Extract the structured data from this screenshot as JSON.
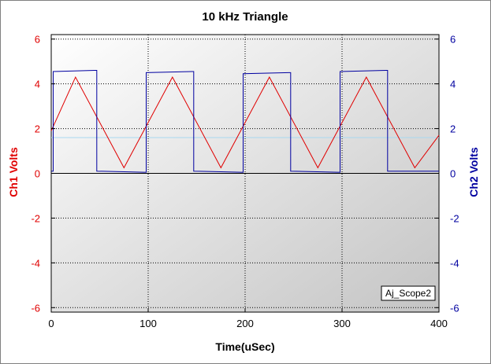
{
  "chart_data": {
    "type": "line",
    "title": "10 kHz Triangle",
    "xlabel": "Time(uSec)",
    "ylabel_left": "Ch1 Volts",
    "ylabel_right": "Ch2 Volts",
    "xlim": [
      0,
      400
    ],
    "ylim_left": [
      -6.2,
      6.2
    ],
    "ylim_right": [
      -6.2,
      6.2
    ],
    "x_ticks": [
      0,
      100,
      200,
      300,
      400
    ],
    "y_ticks": [
      -6,
      -4,
      -2,
      0,
      2,
      4,
      6
    ],
    "grid": true,
    "tag": "Aj_Scope2",
    "colors": {
      "ch1": "#e00000",
      "ch2": "#0000a0",
      "ref_line": "#a8d8f0",
      "left_axis_text": "#e00000",
      "right_axis_text": "#0000a0"
    },
    "reference_line_y": 1.6,
    "series": [
      {
        "name": "Ch1 Volts",
        "axis": "left",
        "x": [
          0,
          25,
          75,
          125,
          175,
          225,
          275,
          325,
          375,
          400
        ],
        "y": [
          1.9,
          4.3,
          0.25,
          4.3,
          0.25,
          4.3,
          0.25,
          4.3,
          0.25,
          1.7
        ]
      },
      {
        "name": "Ch2 Volts",
        "axis": "right",
        "x": [
          0,
          2,
          2,
          45,
          47,
          47,
          96,
          98,
          98,
          145,
          147,
          147,
          196,
          198,
          198,
          245,
          247,
          247,
          296,
          298,
          298,
          345,
          347,
          347,
          400
        ],
        "y": [
          0.1,
          0.1,
          4.55,
          4.6,
          4.6,
          0.1,
          0.05,
          0.05,
          4.5,
          4.55,
          4.55,
          0.1,
          0.05,
          0.05,
          4.45,
          4.5,
          4.5,
          0.1,
          0.05,
          0.05,
          4.55,
          4.6,
          4.6,
          0.1,
          0.1
        ]
      }
    ]
  }
}
